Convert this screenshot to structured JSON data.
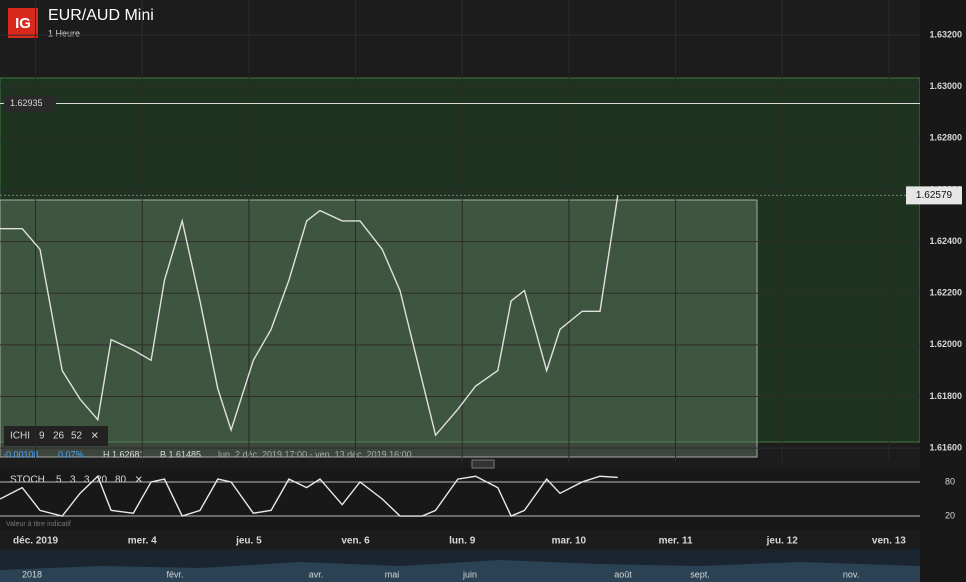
{
  "header": {
    "logo": "IG",
    "title": "EUR/AUD Mini",
    "interval": "1 Heure"
  },
  "chart_data": {
    "type": "line",
    "x": [
      -8,
      -3,
      1,
      6,
      10,
      14,
      17,
      22,
      26,
      29,
      33,
      37,
      41,
      44,
      49,
      53,
      57,
      61,
      64,
      69,
      73,
      78,
      82,
      87,
      90,
      95,
      99,
      104,
      107,
      110,
      115,
      118,
      123,
      127,
      131
    ],
    "series": [
      {
        "name": "EUR/AUD",
        "color": "#e0e0e0",
        "values": [
          1.6245,
          1.6245,
          1.6237,
          1.619,
          1.6179,
          1.6171,
          1.6202,
          1.6198,
          1.6194,
          1.6225,
          1.6248,
          1.6217,
          1.6183,
          1.6167,
          1.6194,
          1.6206,
          1.6225,
          1.6248,
          1.6252,
          1.6248,
          1.6248,
          1.6237,
          1.6221,
          1.6186,
          1.6165,
          1.6175,
          1.6184,
          1.619,
          1.6217,
          1.6221,
          1.619,
          1.6206,
          1.6213,
          1.6213,
          1.62579
        ]
      }
    ],
    "xlim": [
      -8,
      199
    ],
    "xticks": [
      {
        "value": 0,
        "label": "déc. 2019"
      },
      {
        "value": 24,
        "label": "mer. 4"
      },
      {
        "value": 48,
        "label": "jeu. 5"
      },
      {
        "value": 72,
        "label": "ven. 6"
      },
      {
        "value": 96,
        "label": "lun. 9"
      },
      {
        "value": 120,
        "label": "mar. 10"
      },
      {
        "value": 144,
        "label": "mer. 11"
      },
      {
        "value": 168,
        "label": "jeu. 12"
      },
      {
        "value": 192,
        "label": "ven. 13"
      }
    ],
    "ylim": [
      1.61546,
      1.63336
    ],
    "yticks": [
      {
        "value": 1.632,
        "label": "1.63200"
      },
      {
        "value": 1.63,
        "label": "1.63000"
      },
      {
        "value": 1.628,
        "label": "1.62800"
      },
      {
        "value": 1.626,
        "label": "1.62600"
      },
      {
        "value": 1.624,
        "label": "1.62400"
      },
      {
        "value": 1.622,
        "label": "1.62200"
      },
      {
        "value": 1.62,
        "label": "1.62000"
      },
      {
        "value": 1.618,
        "label": "1.61800"
      },
      {
        "value": 1.616,
        "label": "1.61600"
      }
    ],
    "level": {
      "value": 1.62935,
      "label": "1.62935"
    },
    "last_price": {
      "value": 1.62579,
      "label": "1.62579"
    },
    "grid": true
  },
  "ichimoku": {
    "label": "ICHI",
    "params": [
      "9",
      "26",
      "52"
    ]
  },
  "info_bar": {
    "change": "-0.00108",
    "change_pct": "0.07%",
    "high": "H 1.62681",
    "low": "B 1.61485",
    "range": "lun. 2 déc. 2019 17:00 - ven. 13 déc. 2019 16:00"
  },
  "stoch": {
    "type": "line",
    "label": "STOCH",
    "params": [
      "5",
      "3",
      "3",
      "20",
      "80"
    ],
    "color": "#e8e8e8",
    "values": [
      50,
      70,
      30,
      20,
      60,
      90,
      30,
      25,
      80,
      85,
      20,
      30,
      85,
      80,
      25,
      30,
      85,
      70,
      85,
      40,
      80,
      50,
      20,
      20,
      30,
      85,
      90,
      70,
      20,
      30,
      85,
      60,
      80,
      90,
      88
    ],
    "ylim": [
      -1,
      101
    ],
    "yticks": [
      80,
      20
    ],
    "note": "Valeur à titre indicatif"
  },
  "navigator": {
    "labels": [
      "2018",
      "févr.",
      "avr.",
      "mai",
      "juin",
      "août",
      "sept.",
      "nov."
    ]
  }
}
